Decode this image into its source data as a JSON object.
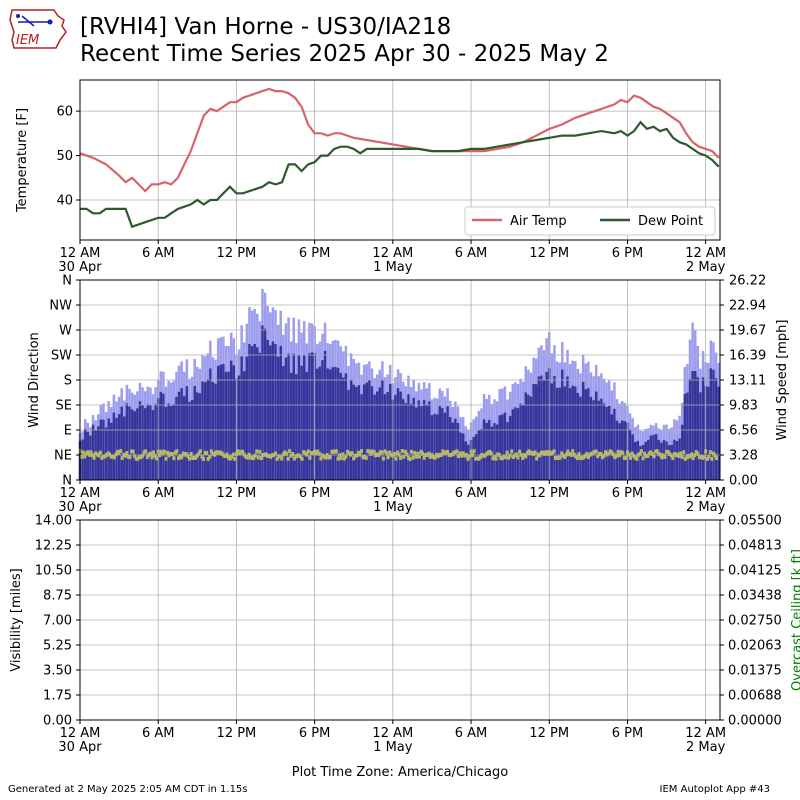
{
  "header": {
    "title_line1": "[RVHI4] Van Horne - US30/IA218",
    "title_line2": "Recent Time Series 2025 Apr 30 - 2025 May 2",
    "logo_text": "IEM"
  },
  "footer": {
    "generated": "Generated at 2 May 2025 2:05 AM CDT in 1.15s",
    "app": "IEM Autoplot App #43"
  },
  "time_ticks": {
    "hours": [
      0,
      6,
      12,
      18,
      24,
      30,
      36,
      42,
      48
    ],
    "labels": [
      "12 AM",
      "6 AM",
      "12 PM",
      "6 PM",
      "12 AM",
      "6 AM",
      "12 PM",
      "6 PM",
      "12 AM"
    ],
    "sublabels": [
      "30 Apr",
      "",
      "",
      "",
      "1 May",
      "",
      "",
      "",
      "2 May"
    ],
    "xlim": [
      0,
      49.1
    ],
    "xlabel": "Plot Time Zone: America/Chicago"
  },
  "chart_data": [
    {
      "type": "line",
      "ylabel": "Temperature [F]",
      "ylim": [
        31,
        67
      ],
      "yticks": [
        40,
        50,
        60
      ],
      "grid": true,
      "legend": "bottom-right",
      "series": [
        {
          "name": "Air Temp",
          "color": "#d9636a",
          "x": [
            0,
            1,
            2,
            3,
            3.5,
            4,
            4.5,
            5,
            5.5,
            6,
            6.5,
            7,
            7.5,
            8,
            8.5,
            9,
            9.5,
            10,
            10.5,
            11,
            11.5,
            12,
            12.5,
            13,
            13.5,
            14,
            14.5,
            15,
            15.5,
            16,
            16.5,
            17,
            17.5,
            18,
            18.5,
            19,
            19.5,
            20,
            20.5,
            21,
            22,
            23,
            24,
            25,
            26,
            27,
            28,
            29,
            30,
            31,
            32,
            33,
            34,
            35,
            36,
            37,
            38,
            39,
            40,
            41,
            41.5,
            42,
            42.5,
            43,
            43.5,
            44,
            44.5,
            45,
            45.5,
            46,
            46.5,
            47,
            47.5,
            48,
            48.5,
            49
          ],
          "values": [
            50.5,
            49.5,
            48,
            45.5,
            44,
            45,
            43.5,
            42,
            43.5,
            43.5,
            44,
            43.5,
            45,
            48,
            51,
            55,
            59,
            60.5,
            60,
            61,
            62,
            62,
            63,
            63.5,
            64,
            64.5,
            65,
            64.5,
            64.5,
            64,
            63,
            61,
            57,
            55,
            55,
            54.5,
            55,
            55,
            54.5,
            54,
            53.5,
            53,
            52.5,
            52,
            51.5,
            51,
            51,
            51,
            51,
            51,
            51.5,
            52,
            53,
            54.5,
            56,
            57,
            58.5,
            59.5,
            60.5,
            61.5,
            62.5,
            62,
            63.5,
            63,
            62,
            61,
            60.5,
            59.5,
            58.5,
            57.5,
            55,
            53,
            52,
            51.5,
            51,
            49.5
          ]
        },
        {
          "name": "Dew Point",
          "color": "#2d5a2d",
          "x": [
            0,
            0.5,
            1,
            1.5,
            2,
            2.5,
            3,
            3.5,
            4,
            4.5,
            5,
            5.5,
            6,
            6.5,
            7,
            7.5,
            8,
            8.5,
            9,
            9.5,
            10,
            10.5,
            11,
            11.5,
            12,
            12.5,
            13,
            13.5,
            14,
            14.5,
            15,
            15.5,
            16,
            16.5,
            17,
            17.5,
            18,
            18.5,
            19,
            19.5,
            20,
            20.5,
            21,
            21.5,
            22,
            23,
            24,
            25,
            26,
            27,
            28,
            29,
            30,
            31,
            32,
            33,
            34,
            35,
            36,
            37,
            38,
            39,
            40,
            41,
            41.5,
            42,
            42.5,
            43,
            43.5,
            44,
            44.5,
            45,
            45.5,
            46,
            46.5,
            47,
            47.5,
            48,
            48.5,
            49
          ],
          "values": [
            38,
            38,
            37,
            37,
            38,
            38,
            38,
            38,
            34,
            34.5,
            35,
            35.5,
            36,
            36,
            37,
            38,
            38.5,
            39,
            40,
            39,
            40,
            40,
            41.5,
            43,
            41.5,
            41.5,
            42,
            42.5,
            43,
            44,
            43.5,
            44,
            48,
            48,
            46.5,
            48,
            48.5,
            50,
            50,
            51.5,
            52,
            52,
            51.5,
            50.5,
            51.5,
            51.5,
            51.5,
            51.5,
            51.5,
            51,
            51,
            51,
            51.5,
            51.5,
            52,
            52.5,
            53,
            53.5,
            54,
            54.5,
            54.5,
            55,
            55.5,
            55,
            55.5,
            54.5,
            55.5,
            57.5,
            56,
            56.5,
            55.5,
            56,
            54,
            53,
            52.5,
            51.5,
            50.5,
            50,
            49,
            47.5
          ]
        }
      ]
    },
    {
      "type": "bar",
      "ylabel_left": "Wind Direction",
      "ylabel_right": "Wind Speed [mph]",
      "direction_ticks": [
        "N",
        "NE",
        "E",
        "SE",
        "S",
        "SW",
        "W",
        "NW",
        "N"
      ],
      "speed_ticks": [
        "0.00",
        "3.28",
        "6.56",
        "9.83",
        "13.11",
        "16.39",
        "19.67",
        "22.94",
        "26.22"
      ],
      "speed_max": 26.22,
      "grid": true,
      "direction_color": "#b8b86a",
      "gust_color": "#9c9cf0",
      "speed_color": "#35359a",
      "direction_deg_typical": 45,
      "speed_x": [
        0,
        1,
        2,
        3,
        4,
        5,
        6,
        7,
        8,
        9,
        10,
        11,
        12,
        13,
        14,
        15,
        16,
        17,
        18,
        19,
        20,
        21,
        22,
        23,
        24,
        25,
        26,
        27,
        28,
        29,
        29.5,
        30,
        30.5,
        31,
        32,
        33,
        34,
        35,
        36,
        37,
        38,
        39,
        40,
        41,
        42,
        42.5,
        43,
        44,
        45,
        46,
        46.5,
        47,
        47.5,
        48,
        48.5,
        49
      ],
      "speed_values": [
        6,
        7,
        8,
        9,
        10,
        10,
        11,
        11,
        12,
        12,
        14,
        15,
        15,
        17,
        20,
        19,
        16,
        16,
        17,
        16,
        14,
        13,
        13,
        13,
        12,
        11,
        11,
        10,
        10,
        8,
        6,
        5,
        6,
        8,
        8,
        9,
        11,
        13,
        14,
        14,
        13,
        12,
        11,
        9,
        8,
        6,
        5,
        6,
        5,
        6,
        12,
        15,
        13,
        14,
        14,
        14
      ],
      "gust_values": [
        7,
        8,
        10,
        11,
        12,
        12,
        13,
        14,
        15,
        15,
        17,
        18,
        18,
        21,
        24,
        23,
        20,
        20,
        20,
        19,
        17,
        16,
        15,
        15,
        14,
        13,
        13,
        12,
        12,
        10,
        8,
        7,
        8,
        11,
        11,
        12,
        14,
        16,
        18,
        17,
        16,
        15,
        14,
        12,
        10,
        8,
        7,
        7,
        7,
        9,
        15,
        21,
        16,
        17,
        17,
        17
      ]
    },
    {
      "type": "line",
      "ylabel_left": "Visibility [miles]",
      "ylabel_right": "Overcast Ceiling [k ft]",
      "yticks_left": [
        "0.00",
        "1.75",
        "3.50",
        "5.25",
        "7.00",
        "8.75",
        "10.50",
        "12.25",
        "14.00"
      ],
      "yticks_right": [
        "0.00000",
        "0.00688",
        "0.01375",
        "0.02063",
        "0.02750",
        "0.03438",
        "0.04125",
        "0.04813",
        "0.05500"
      ],
      "right_label_color": "#008000",
      "grid": true,
      "series": []
    }
  ]
}
